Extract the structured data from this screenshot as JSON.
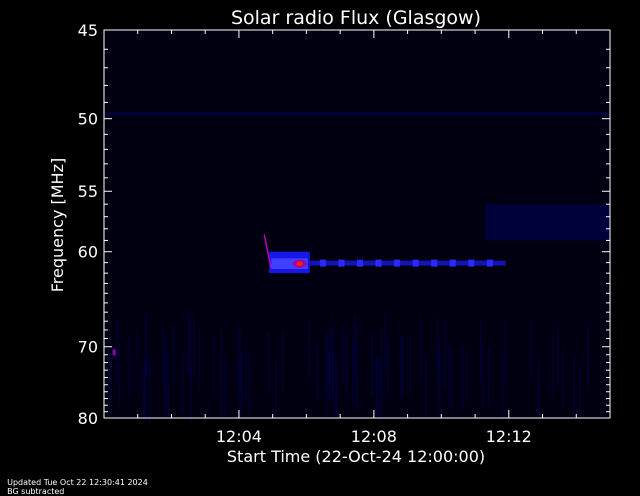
{
  "footer": {
    "updated": "Updated Tue Oct 22 12:30:41 2024",
    "note": "BG subtracted"
  },
  "chart_data": {
    "type": "heatmap",
    "title": "Solar radio Flux (Glasgow)",
    "xlabel": "Start Time (22-Oct-24 12:00:00)",
    "ylabel": "Frequency [MHz]",
    "x_unit": "minutes after 12:00:00",
    "xlim": [
      0,
      15
    ],
    "ylim": [
      80,
      45
    ],
    "y_scale": "reciprocal",
    "x_ticks": [
      {
        "value": 4,
        "label": "12:04"
      },
      {
        "value": 8,
        "label": "12:08"
      },
      {
        "value": 12,
        "label": "12:12"
      }
    ],
    "y_ticks": [
      {
        "value": 45,
        "label": "45"
      },
      {
        "value": 50,
        "label": "50"
      },
      {
        "value": 55,
        "label": "55"
      },
      {
        "value": 60,
        "label": "60"
      },
      {
        "value": 70,
        "label": "70"
      },
      {
        "value": 80,
        "label": "80"
      }
    ],
    "background_color": "#000010",
    "colors": {
      "low": "#000060",
      "mid": "#2020ff",
      "high": "#ff2000"
    },
    "features": [
      {
        "name": "interference-band",
        "t_start": 0.0,
        "t_end": 15.0,
        "freq": 49.7,
        "intensity": 0.35
      },
      {
        "name": "burst-core",
        "t_start": 4.9,
        "t_end": 6.1,
        "freq_low": 60.0,
        "freq_high": 62.0,
        "intensity": 0.85
      },
      {
        "name": "burst-peak",
        "t": 5.8,
        "freq": 61.1,
        "intensity": 1.0
      },
      {
        "name": "burst-tail",
        "t_start": 6.1,
        "t_end": 11.9,
        "freq": 61.0,
        "intensity": 0.55
      },
      {
        "name": "drift-streak",
        "t_start": 4.75,
        "t_end": 4.95,
        "freq_start": 58.5,
        "freq_end": 61.5,
        "intensity": 0.7
      },
      {
        "name": "spot",
        "t": 0.3,
        "freq": 70.7,
        "intensity": 0.6
      }
    ]
  }
}
